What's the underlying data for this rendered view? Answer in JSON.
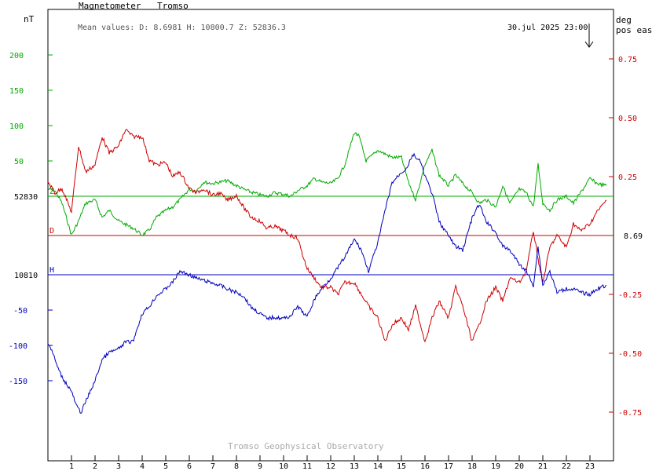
{
  "header": {
    "instrument": "Magnetometer",
    "station": "Tromso",
    "mean_values": "Mean values:  D: 8.6981   H: 10800.7   Z: 52836.3",
    "timestamp": "30.jul 2025 23:00",
    "footer": "Tromso Geophysical Observatory"
  },
  "axes": {
    "left_unit": "nT",
    "right_unit_line1": "deg",
    "right_unit_line2": "pos east",
    "z_baseline_label": "52830",
    "h_baseline_label": "10810",
    "d_value_label": "8.69",
    "z_marker": "Z",
    "d_marker": "D",
    "h_marker": "H"
  },
  "colors": {
    "Z": "#00aa00",
    "D": "#cc0000",
    "H": "#0000bb",
    "frame": "#000000",
    "footer": "#aaaaaa"
  },
  "chart_data": {
    "type": "line",
    "x_range": [
      0,
      24
    ],
    "x_ticks": [
      "1",
      "2",
      "3",
      "4",
      "5",
      "6",
      "7",
      "8",
      "9",
      "10",
      "11",
      "12",
      "13",
      "14",
      "15",
      "16",
      "17",
      "18",
      "19",
      "20",
      "21",
      "22",
      "23"
    ],
    "left_ticks_green": [
      "200",
      "150",
      "100",
      "50"
    ],
    "left_ticks_blue": [
      "-50",
      "-100",
      "-150"
    ],
    "right_ticks": [
      "0.75",
      "0.50",
      "0.25",
      "-0.25",
      "-0.50",
      "-0.75"
    ],
    "series": [
      {
        "name": "Z",
        "unit": "nT offset from 52830",
        "x": [
          0,
          0.3,
          0.6,
          1.0,
          1.3,
          1.6,
          2.0,
          2.3,
          2.6,
          3.0,
          3.3,
          3.6,
          4.0,
          4.3,
          4.6,
          5.0,
          5.3,
          5.6,
          6.0,
          6.3,
          6.6,
          7.0,
          7.3,
          7.6,
          8.0,
          8.3,
          8.6,
          9.0,
          9.3,
          9.6,
          10.0,
          10.3,
          10.6,
          11.0,
          11.3,
          11.6,
          12.0,
          12.3,
          12.6,
          13.0,
          13.2,
          13.5,
          14.0,
          14.3,
          14.6,
          15.0,
          15.3,
          15.6,
          16.0,
          16.3,
          16.6,
          17.0,
          17.3,
          17.6,
          18.0,
          18.3,
          18.6,
          19.0,
          19.3,
          19.6,
          20.0,
          20.3,
          20.6,
          20.8,
          21.0,
          21.3,
          21.6,
          22.0,
          22.3,
          22.6,
          23.0,
          23.3,
          23.7
        ],
        "y": [
          10,
          8,
          -10,
          -55,
          -35,
          -10,
          -5,
          -30,
          -20,
          -35,
          -40,
          -45,
          -55,
          -48,
          -30,
          -20,
          -15,
          -5,
          10,
          8,
          20,
          18,
          20,
          22,
          15,
          10,
          6,
          2,
          0,
          5,
          3,
          0,
          8,
          15,
          25,
          20,
          18,
          25,
          45,
          90,
          85,
          50,
          65,
          60,
          55,
          55,
          20,
          -5,
          45,
          65,
          30,
          15,
          30,
          18,
          5,
          -10,
          -5,
          -15,
          15,
          -10,
          10,
          5,
          -15,
          45,
          -10,
          -20,
          -5,
          0,
          -10,
          5,
          25,
          18,
          15
        ]
      },
      {
        "name": "D",
        "unit": "deg offset from 8.69",
        "x": [
          0,
          0.3,
          0.6,
          1.0,
          1.3,
          1.6,
          2.0,
          2.3,
          2.6,
          3.0,
          3.3,
          3.6,
          4.0,
          4.3,
          4.6,
          5.0,
          5.3,
          5.6,
          6.0,
          6.3,
          6.6,
          7.0,
          7.3,
          7.6,
          8.0,
          8.3,
          8.6,
          9.0,
          9.3,
          9.6,
          10.0,
          10.3,
          10.6,
          10.8,
          11.0,
          11.3,
          11.6,
          12.0,
          12.3,
          12.6,
          13.0,
          13.3,
          13.6,
          14.0,
          14.3,
          14.6,
          15.0,
          15.3,
          15.6,
          16.0,
          16.3,
          16.6,
          17.0,
          17.3,
          17.6,
          18.0,
          18.3,
          18.6,
          19.0,
          19.3,
          19.6,
          20.0,
          20.3,
          20.6,
          20.8,
          21.0,
          21.3,
          21.6,
          22.0,
          22.3,
          22.6,
          23.0,
          23.3,
          23.7
        ],
        "y": [
          0.23,
          0.18,
          0.2,
          0.1,
          0.38,
          0.27,
          0.3,
          0.42,
          0.35,
          0.38,
          0.45,
          0.42,
          0.42,
          0.32,
          0.3,
          0.31,
          0.25,
          0.27,
          0.2,
          0.18,
          0.2,
          0.17,
          0.18,
          0.15,
          0.17,
          0.12,
          0.08,
          0.06,
          0.03,
          0.04,
          0.02,
          0.0,
          -0.01,
          -0.08,
          -0.14,
          -0.18,
          -0.22,
          -0.22,
          -0.25,
          -0.2,
          -0.2,
          -0.25,
          -0.3,
          -0.35,
          -0.45,
          -0.38,
          -0.35,
          -0.4,
          -0.3,
          -0.45,
          -0.35,
          -0.28,
          -0.35,
          -0.22,
          -0.3,
          -0.45,
          -0.38,
          -0.28,
          -0.22,
          -0.28,
          -0.18,
          -0.2,
          -0.15,
          0.02,
          -0.1,
          -0.2,
          -0.05,
          0.0,
          -0.05,
          0.05,
          0.02,
          0.05,
          0.1,
          0.15
        ]
      },
      {
        "name": "H",
        "unit": "nT offset from 10810",
        "x": [
          0,
          0.2,
          0.4,
          0.6,
          0.8,
          1.0,
          1.2,
          1.4,
          1.6,
          1.8,
          2.0,
          2.3,
          2.6,
          3.0,
          3.3,
          3.6,
          4.0,
          4.3,
          4.6,
          5.0,
          5.3,
          5.6,
          6.0,
          6.3,
          6.6,
          7.0,
          7.3,
          7.6,
          8.0,
          8.3,
          8.6,
          9.0,
          9.3,
          9.6,
          10.0,
          10.3,
          10.6,
          11.0,
          11.3,
          11.6,
          12.0,
          12.3,
          12.6,
          13.0,
          13.3,
          13.6,
          14.0,
          14.3,
          14.6,
          15.0,
          15.2,
          15.5,
          15.8,
          16.0,
          16.3,
          16.6,
          17.0,
          17.3,
          17.6,
          18.0,
          18.3,
          18.6,
          19.0,
          19.3,
          19.6,
          20.0,
          20.3,
          20.6,
          20.8,
          21.0,
          21.3,
          21.6,
          22.0,
          22.3,
          22.6,
          23.0,
          23.3,
          23.7
        ],
        "y": [
          -95,
          -110,
          -130,
          -145,
          -155,
          -165,
          -185,
          -195,
          -180,
          -165,
          -150,
          -120,
          -110,
          -105,
          -95,
          -95,
          -55,
          -45,
          -30,
          -20,
          -10,
          5,
          0,
          -5,
          -8,
          -12,
          -15,
          -20,
          -25,
          -30,
          -45,
          -55,
          -62,
          -60,
          -62,
          -58,
          -45,
          -60,
          -35,
          -20,
          -5,
          10,
          25,
          50,
          35,
          5,
          45,
          90,
          130,
          145,
          150,
          170,
          160,
          140,
          115,
          75,
          55,
          40,
          35,
          80,
          100,
          75,
          60,
          40,
          35,
          15,
          5,
          -15,
          40,
          -15,
          5,
          -25,
          -20,
          -20,
          -25,
          -28,
          -20,
          -15
        ]
      }
    ]
  }
}
